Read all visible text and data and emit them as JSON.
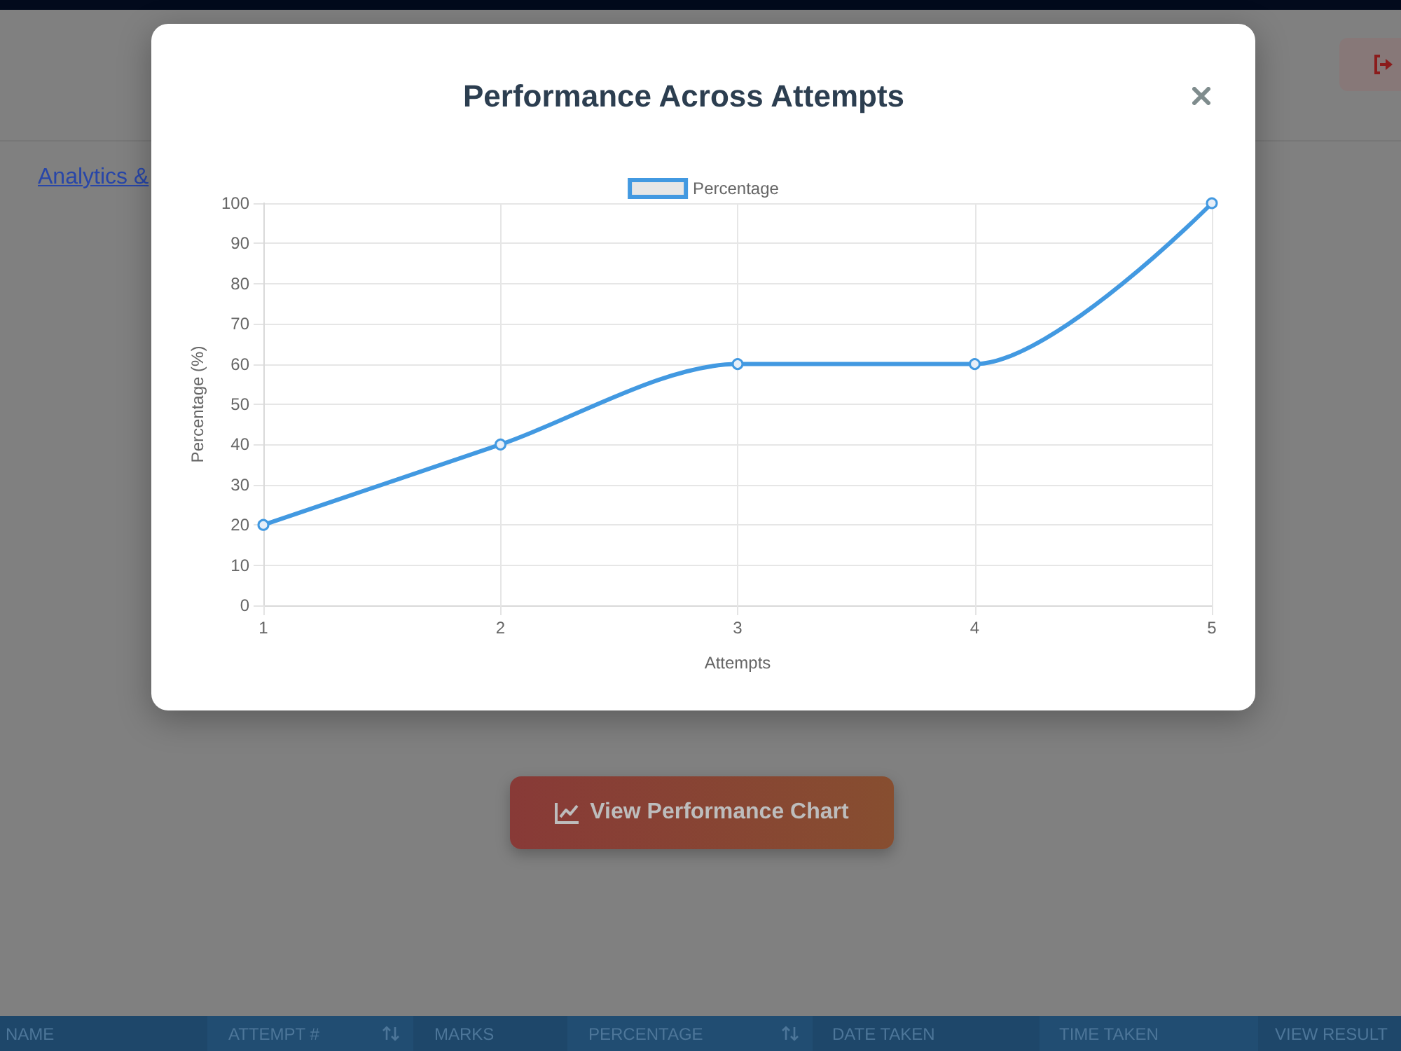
{
  "chart_data": {
    "type": "line",
    "title": "Performance Across Attempts",
    "xlabel": "Attempts",
    "ylabel": "Percentage (%)",
    "x": [
      1,
      2,
      3,
      4,
      5
    ],
    "series": [
      {
        "name": "Percentage",
        "color": "#4299e1",
        "values": [
          20,
          40,
          60,
          60,
          100
        ]
      }
    ],
    "xlim": [
      1,
      5
    ],
    "xticks": [
      1,
      2,
      3,
      4,
      5
    ],
    "ylim": [
      0,
      100
    ],
    "yticks": [
      0,
      10,
      20,
      30,
      40,
      50,
      60,
      70,
      80,
      90,
      100
    ],
    "grid": true,
    "legend": "top",
    "marker": "circle",
    "line_style": "solid",
    "annotations": [
      "Analytics &",
      "View Performance Chart",
      "NAME",
      "ATTEMPT #",
      "MARKS",
      "PERCENTAGE",
      "DATE TAKEN",
      "TIME TAKEN",
      "VIEW RESULT"
    ]
  }
}
